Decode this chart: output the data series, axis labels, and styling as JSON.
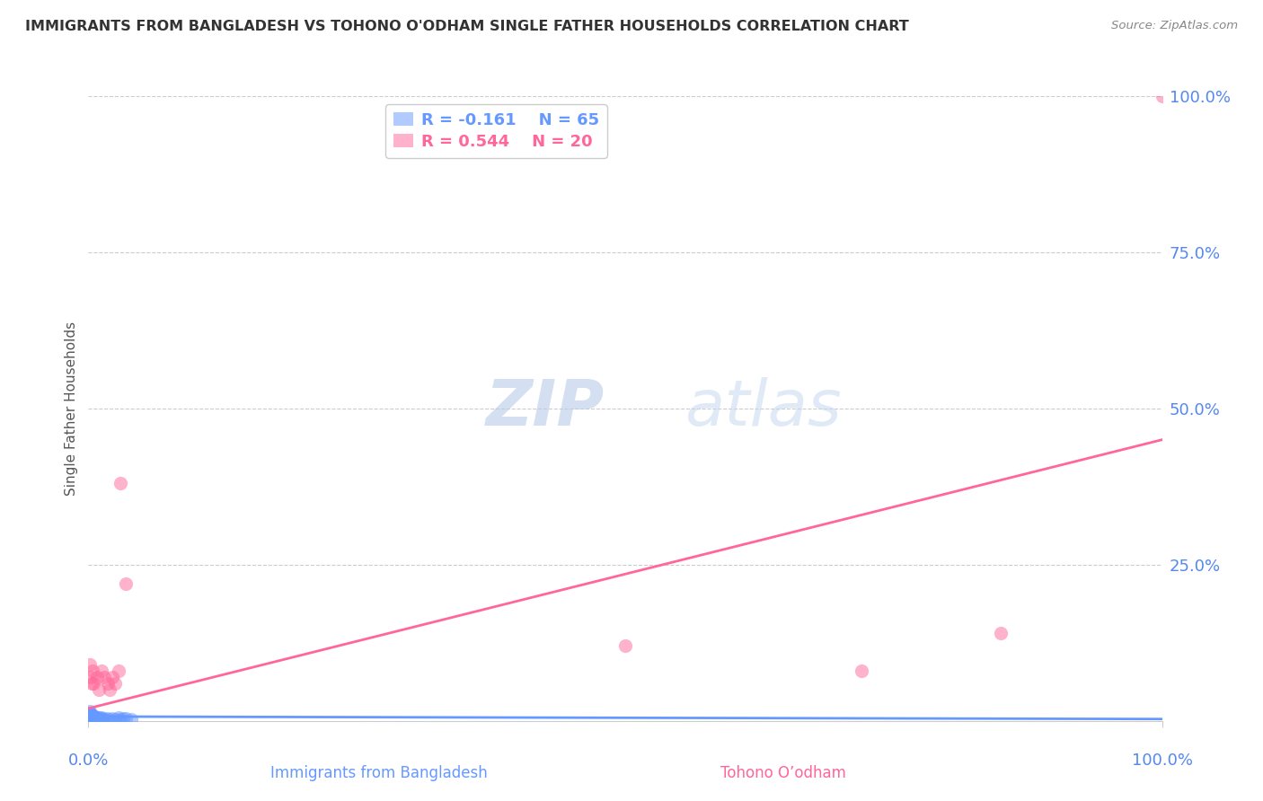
{
  "title": "IMMIGRANTS FROM BANGLADESH VS TOHONO O'ODHAM SINGLE FATHER HOUSEHOLDS CORRELATION CHART",
  "source": "Source: ZipAtlas.com",
  "xlabel_blue": "Immigrants from Bangladesh",
  "xlabel_pink": "Tohono O’odham",
  "ylabel": "Single Father Households",
  "legend_blue_r": "R = -0.161",
  "legend_blue_n": "N = 65",
  "legend_pink_r": "R = 0.544",
  "legend_pink_n": "N = 20",
  "blue_color": "#6699ff",
  "pink_color": "#ff6699",
  "watermark_zip": "ZIP",
  "watermark_atlas": "atlas",
  "blue_scatter_x": [
    0.001,
    0.002,
    0.001,
    0.003,
    0.001,
    0.002,
    0.001,
    0.003,
    0.002,
    0.001,
    0.001,
    0.002,
    0.003,
    0.004,
    0.001,
    0.002,
    0.001,
    0.003,
    0.002,
    0.001,
    0.002,
    0.001,
    0.003,
    0.002,
    0.004,
    0.001,
    0.002,
    0.003,
    0.001,
    0.002,
    0.005,
    0.004,
    0.003,
    0.002,
    0.001,
    0.006,
    0.005,
    0.004,
    0.003,
    0.007,
    0.006,
    0.005,
    0.008,
    0.007,
    0.009,
    0.01,
    0.011,
    0.012,
    0.013,
    0.015,
    0.017,
    0.019,
    0.022,
    0.025,
    0.001,
    0.002,
    0.001,
    0.002,
    0.003,
    0.001,
    0.03,
    0.035,
    0.028,
    0.032,
    0.04
  ],
  "blue_scatter_y": [
    0.005,
    0.008,
    0.003,
    0.006,
    0.01,
    0.004,
    0.007,
    0.005,
    0.009,
    0.006,
    0.003,
    0.007,
    0.004,
    0.008,
    0.005,
    0.006,
    0.004,
    0.007,
    0.005,
    0.008,
    0.003,
    0.006,
    0.005,
    0.007,
    0.004,
    0.009,
    0.005,
    0.006,
    0.008,
    0.004,
    0.003,
    0.005,
    0.007,
    0.006,
    0.004,
    0.005,
    0.003,
    0.006,
    0.004,
    0.005,
    0.007,
    0.004,
    0.003,
    0.005,
    0.004,
    0.006,
    0.003,
    0.005,
    0.004,
    0.003,
    0.004,
    0.003,
    0.004,
    0.003,
    0.012,
    0.01,
    0.015,
    0.011,
    0.009,
    0.013,
    0.003,
    0.004,
    0.005,
    0.004,
    0.003
  ],
  "pink_scatter_x": [
    0.005,
    0.008,
    0.01,
    0.012,
    0.015,
    0.018,
    0.02,
    0.022,
    0.025,
    0.028,
    0.03,
    0.035,
    0.001,
    0.002,
    0.003,
    0.004,
    0.5,
    0.72,
    0.85,
    1.0
  ],
  "pink_scatter_y": [
    0.06,
    0.07,
    0.05,
    0.08,
    0.07,
    0.06,
    0.05,
    0.07,
    0.06,
    0.08,
    0.38,
    0.22,
    0.09,
    0.07,
    0.06,
    0.08,
    0.12,
    0.08,
    0.14,
    1.0
  ],
  "pink_line_intercept": 0.02,
  "pink_line_slope": 0.43,
  "blue_line_intercept": 0.007,
  "blue_line_slope": -0.004,
  "xlim": [
    0.0,
    1.0
  ],
  "ylim": [
    0.0,
    1.0
  ],
  "y_ticks": [
    0.25,
    0.5,
    0.75,
    1.0
  ],
  "x_ticks": [
    0.0,
    1.0
  ],
  "grid_color": "#cccccc",
  "title_color": "#333333",
  "ylabel_color": "#555555",
  "y_tick_color": "#5588ee",
  "x_tick_color_left": "#5588ee",
  "x_tick_color_right": "#5588ee",
  "source_color": "#888888",
  "scatter_size": 120,
  "scatter_alpha": 0.5,
  "line_width": 2.0
}
